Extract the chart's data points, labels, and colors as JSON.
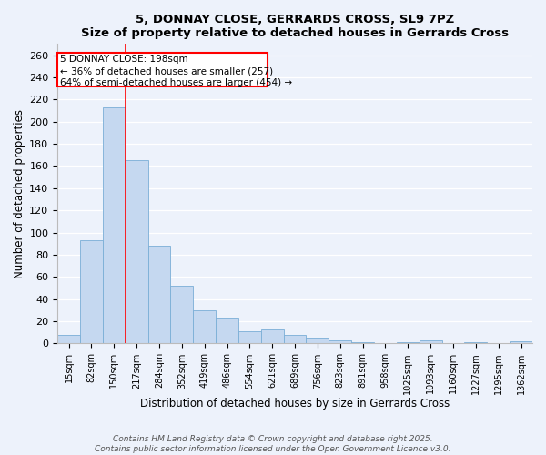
{
  "title": "5, DONNAY CLOSE, GERRARDS CROSS, SL9 7PZ",
  "subtitle": "Size of property relative to detached houses in Gerrards Cross",
  "xlabel": "Distribution of detached houses by size in Gerrards Cross",
  "ylabel": "Number of detached properties",
  "bar_color": "#c5d8f0",
  "bar_edge_color": "#7aaed6",
  "categories": [
    "15sqm",
    "82sqm",
    "150sqm",
    "217sqm",
    "284sqm",
    "352sqm",
    "419sqm",
    "486sqm",
    "554sqm",
    "621sqm",
    "689sqm",
    "756sqm",
    "823sqm",
    "891sqm",
    "958sqm",
    "1025sqm",
    "1093sqm",
    "1160sqm",
    "1227sqm",
    "1295sqm",
    "1362sqm"
  ],
  "values": [
    8,
    93,
    213,
    165,
    88,
    52,
    30,
    23,
    11,
    13,
    8,
    5,
    3,
    1,
    0,
    1,
    3,
    0,
    1,
    0,
    2
  ],
  "red_line_x": 2.5,
  "annotation_line1": "5 DONNAY CLOSE: 198sqm",
  "annotation_line2": "← 36% of detached houses are smaller (257)",
  "annotation_line3": "64% of semi-detached houses are larger (454) →",
  "ylim": [
    0,
    270
  ],
  "yticks": [
    0,
    20,
    40,
    60,
    80,
    100,
    120,
    140,
    160,
    180,
    200,
    220,
    240,
    260
  ],
  "bg_color": "#edf2fb",
  "grid_color": "#ffffff",
  "footer_line1": "Contains HM Land Registry data © Crown copyright and database right 2025.",
  "footer_line2": "Contains public sector information licensed under the Open Government Licence v3.0."
}
